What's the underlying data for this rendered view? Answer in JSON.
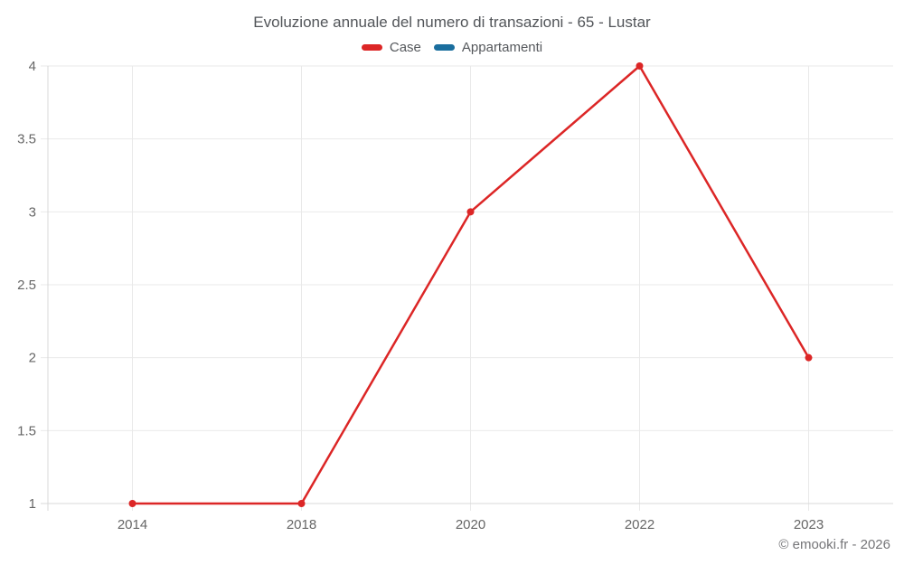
{
  "chart": {
    "title": "Evoluzione annuale del numero di transazioni - 65 - Lustar",
    "copyright": "© emooki.fr - 2026"
  },
  "chart_data": {
    "type": "line",
    "title": "Evoluzione annuale del numero di transazioni - 65 - Lustar",
    "categories": [
      "2014",
      "2018",
      "2020",
      "2022",
      "2023"
    ],
    "series": [
      {
        "name": "Case",
        "color": "#dc2626",
        "values": [
          1,
          1,
          3,
          4,
          2
        ]
      },
      {
        "name": "Appartamenti",
        "color": "#1a6e9e",
        "values": [
          null,
          null,
          null,
          null,
          null
        ]
      }
    ],
    "xlabel": "",
    "ylabel": "",
    "ylim": [
      1,
      4
    ],
    "y_ticks": [
      1,
      1.5,
      2,
      2.5,
      3,
      3.5,
      4
    ],
    "grid": true,
    "legend_position": "top",
    "grid_color": "#e9e9e9",
    "axis_color": "#d9d9d9",
    "tick_label_color": "#666666"
  }
}
